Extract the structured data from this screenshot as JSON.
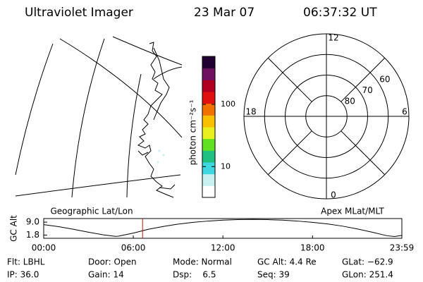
{
  "header": {
    "instrument": "Ultraviolet Imager",
    "date": "23 Mar 07",
    "time": "06:37:32 UT"
  },
  "colorbar": {
    "label": "photon cm⁻²s⁻¹",
    "log": true,
    "lim": [
      3.2,
      590
    ],
    "ticks": [
      10,
      100
    ],
    "colors": [
      "#ffffff",
      "#c8f0f0",
      "#40d8e0",
      "#20c080",
      "#60e020",
      "#e8f020",
      "#f8c000",
      "#f07000",
      "#e01010",
      "#b00020",
      "#701060",
      "#200030"
    ]
  },
  "polar": {
    "rlim": [
      90,
      50
    ],
    "lat_rings": [
      80,
      70,
      60
    ],
    "mlt_labels": {
      "top": "12",
      "right": "6",
      "bottom": "0",
      "left": "18"
    }
  },
  "panel_labels": {
    "left": "Geographic Lat/Lon",
    "right": "Apex MLat/MLT"
  },
  "chart_data": {
    "type": "line",
    "y_label": "GC Alt",
    "x": [
      0,
      1,
      2,
      3,
      4,
      4.8,
      5,
      6,
      7,
      8,
      9,
      10,
      11,
      12,
      13,
      14,
      15,
      16,
      17,
      18,
      19,
      20,
      21,
      22,
      23,
      23.5,
      23.983
    ],
    "values": [
      7.6,
      6.5,
      5.0,
      3.4,
      1.9,
      1.1,
      1.2,
      2.9,
      5.0,
      6.6,
      7.9,
      8.9,
      9.6,
      10.1,
      10.4,
      10.5,
      10.4,
      10.1,
      9.6,
      8.9,
      8.0,
      6.8,
      5.2,
      3.4,
      1.4,
      1.0,
      1.6
    ],
    "color": "#000000",
    "xlim": [
      0,
      23.983
    ],
    "ylim": [
      0,
      11
    ],
    "xticks": [
      {
        "value": 0,
        "label": "00:00"
      },
      {
        "value": 6,
        "label": "06:00"
      },
      {
        "value": 12,
        "label": "12:00"
      },
      {
        "value": 18,
        "label": "18:00"
      },
      {
        "value": 23.983,
        "label": "23:59"
      }
    ],
    "yticks": [
      {
        "value": 9,
        "label": "9.0"
      },
      1.8
    ],
    "marker": {
      "x": 6.62,
      "color": "#d01010"
    }
  },
  "footer": {
    "rows": [
      [
        "Flt: LBHL",
        "Door: Open",
        "Mode: Normal",
        "GC Alt: 4.4 Re",
        "GLat: −62.9"
      ],
      [
        "IP: 36.0",
        "Gain: 14",
        "Dsp:    6.5",
        "Seq: 39",
        "GLon: 251.4"
      ]
    ]
  }
}
